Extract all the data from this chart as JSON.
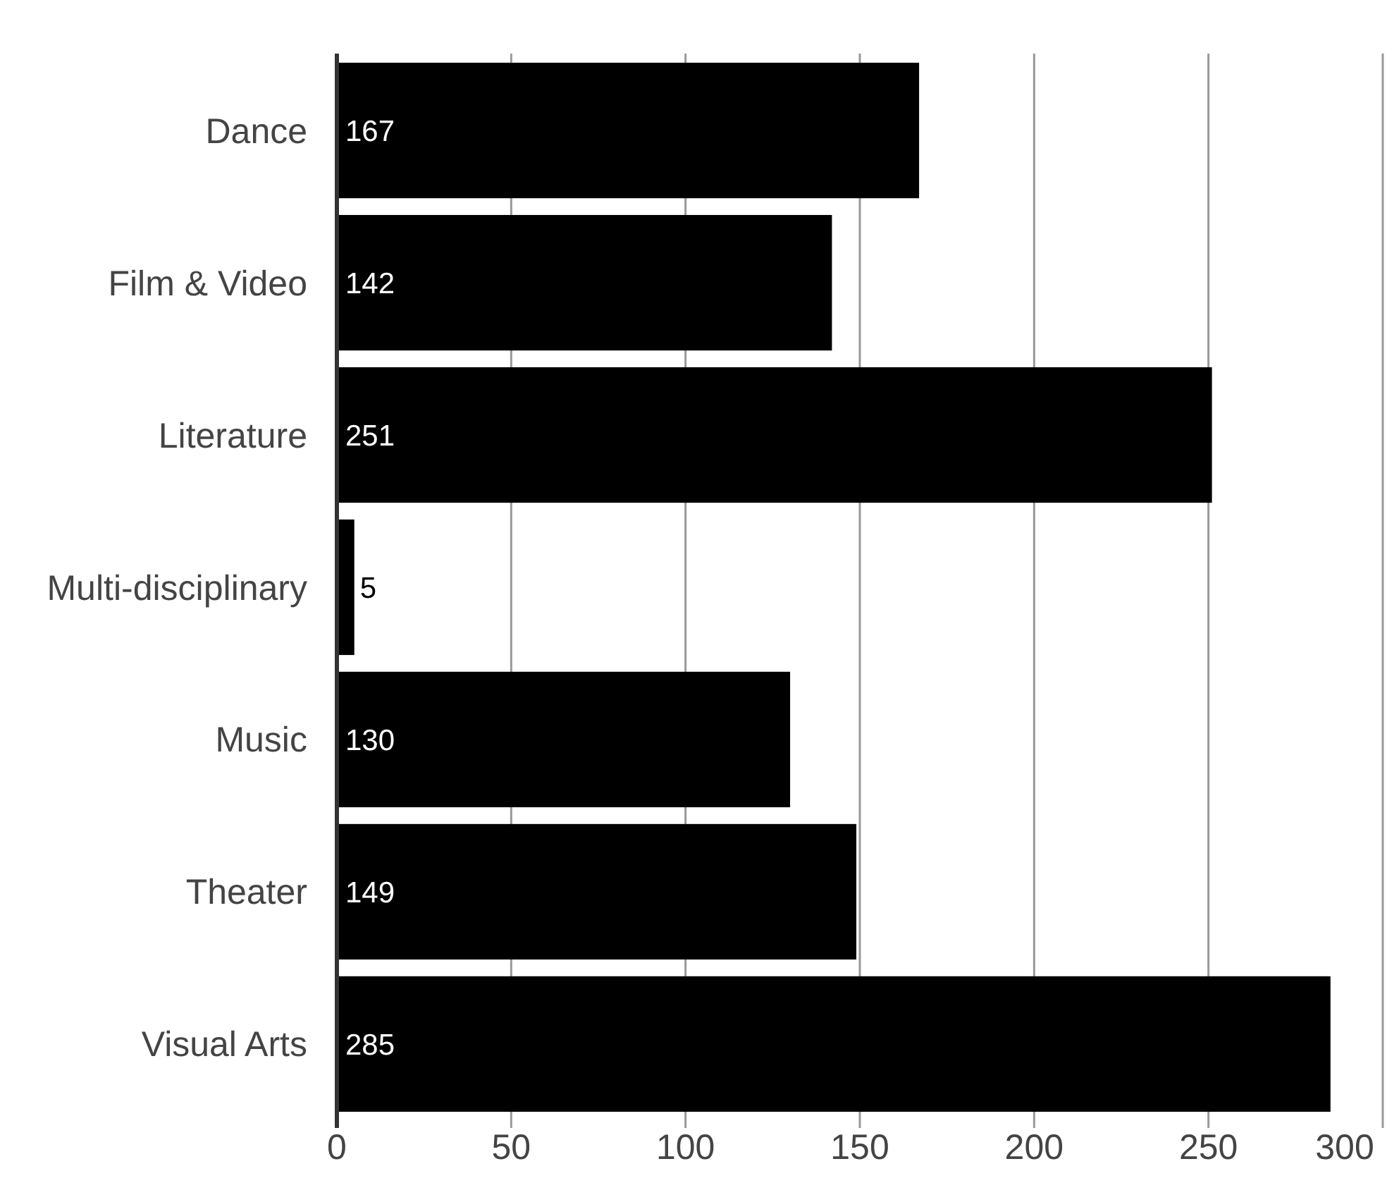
{
  "chart_data": {
    "type": "bar",
    "orientation": "horizontal",
    "categories": [
      "Dance",
      "Film & Video",
      "Literature",
      "Multi-disciplinary",
      "Music",
      "Theater",
      "Visual Arts"
    ],
    "values": [
      167,
      142,
      251,
      5,
      130,
      149,
      285
    ],
    "color": "#000000",
    "xlim": [
      0,
      300
    ],
    "xticks": [
      0,
      50,
      100,
      150,
      200,
      250,
      300
    ],
    "grid": "x",
    "data_labels": true
  }
}
